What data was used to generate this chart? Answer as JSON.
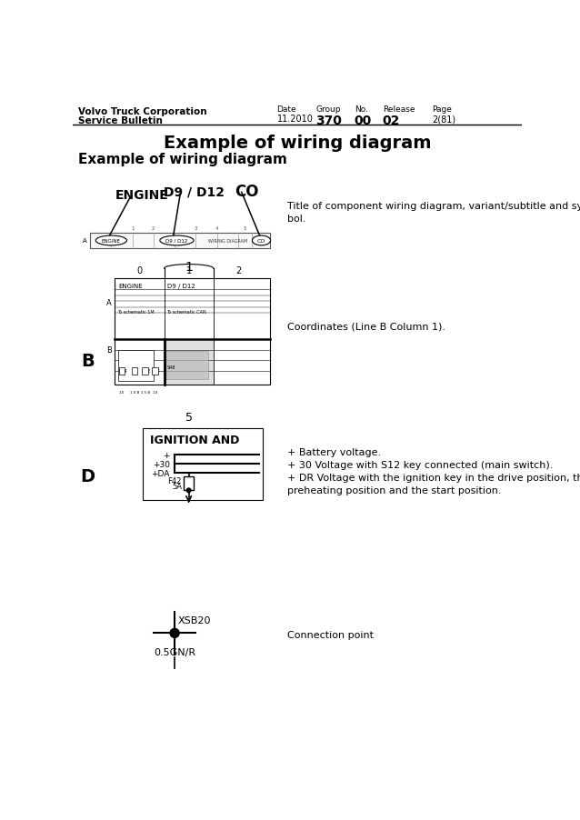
{
  "bg_color": "#ffffff",
  "header": {
    "company": "Volvo Truck Corporation",
    "bulletin": "Service Bulletin",
    "date_label": "Date",
    "date_val": "11.2010",
    "group_label": "Group",
    "group_val": "370",
    "no_label": "No.",
    "no_val": "00",
    "release_label": "Release",
    "release_val": "02",
    "page_label": "Page",
    "page_val": "2(81)"
  },
  "main_title": "Example of wiring diagram",
  "section_title": "Example of wiring diagram",
  "section1_note": "Title of component wiring diagram, variant/subtitle and sym-\nbol.",
  "section2_note": "Coordinates (Line B Column 1).",
  "section3_note": "+ Battery voltage.\n+ 30 Voltage with S12 key connected (main switch).\n+ DR Voltage with the ignition key in the drive position, the\npreheating position and the start position.",
  "section4_note": "Connection point"
}
